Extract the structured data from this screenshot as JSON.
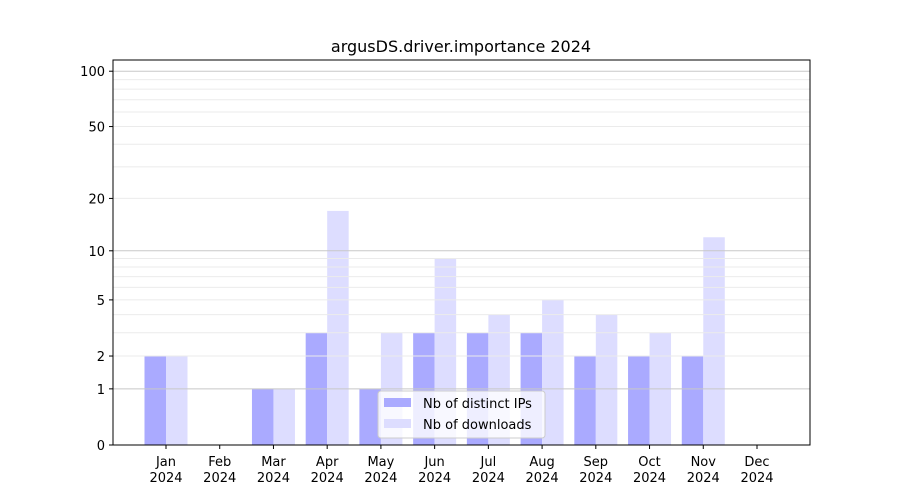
{
  "chart_data": {
    "type": "bar",
    "title": "argusDS.driver.importance 2024",
    "xlabel": "",
    "ylabel": "",
    "yscale": "log(1+y)",
    "ylim": [
      0,
      115
    ],
    "yticks": [
      0,
      1,
      2,
      5,
      10,
      20,
      50,
      100
    ],
    "grid": "horizontal, major at 1/10/100 and minor lines",
    "legend_placement": "lower center",
    "categories": [
      "Jan\n2024",
      "Feb\n2024",
      "Mar\n2024",
      "Apr\n2024",
      "May\n2024",
      "Jun\n2024",
      "Jul\n2024",
      "Aug\n2024",
      "Sep\n2024",
      "Oct\n2024",
      "Nov\n2024",
      "Dec\n2024"
    ],
    "series": [
      {
        "name": "Nb of distinct IPs",
        "color": "#aaaaff",
        "values": [
          2,
          0,
          1,
          3,
          1,
          3,
          3,
          3,
          2,
          2,
          2,
          0
        ]
      },
      {
        "name": "Nb of downloads",
        "color": "#ddddff",
        "values": [
          2,
          0,
          1,
          17,
          3,
          9,
          4,
          5,
          4,
          3,
          12,
          0
        ]
      }
    ]
  }
}
